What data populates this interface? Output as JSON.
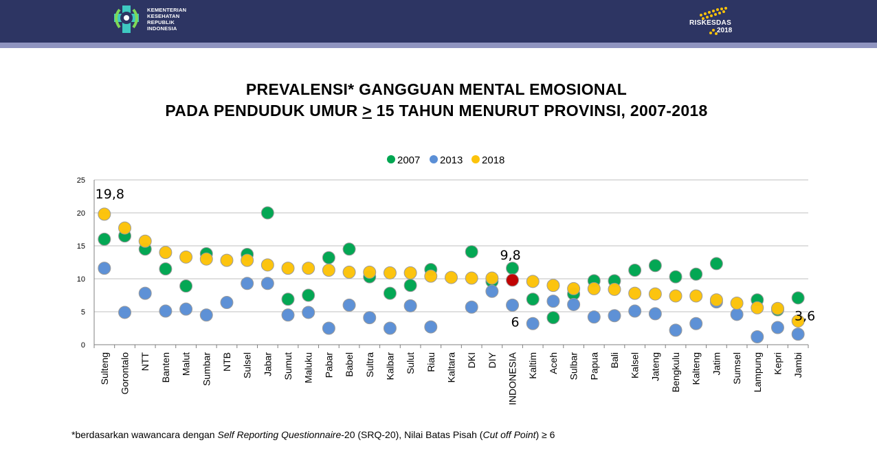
{
  "header": {
    "ministry_lines": [
      "KEMENTERIAN",
      "KESEHATAN",
      "REPUBLIK",
      "INDONESIA"
    ],
    "riskesdas_name": "RISKESDAS",
    "riskesdas_year": "2018"
  },
  "title": {
    "line1": "PREVALENSI* GANGGUAN MENTAL EMOSIONAL",
    "line2_pre": "PADA PENDUDUK UMUR ",
    "line2_ge": ">",
    "line2_post": " 15 TAHUN MENURUT PROVINSI, 2007-2018"
  },
  "footnote": {
    "pre": "*berdasarkan wawancara dengan ",
    "italic1": "Self Reporting Questionnaire",
    "mid": "-20 (SRQ-20), Nilai Batas Pisah (",
    "italic2": "Cut off Point",
    "post": ")  ≥ 6"
  },
  "colors": {
    "s2007": "#00a651",
    "s2013": "#5b8fd6",
    "s2018": "#fcc30b",
    "indonesia_2018": "#c00000",
    "header_bg": "#2d3563"
  },
  "chart_data": {
    "type": "scatter",
    "ylim": [
      0,
      25
    ],
    "yticks": [
      0,
      5,
      10,
      15,
      20,
      25
    ],
    "grid": true,
    "legend_position": "top",
    "categories": [
      "Sulteng",
      "Gorontalo",
      "NTT",
      "Banten",
      "Malut",
      "Sumbar",
      "NTB",
      "Sulsel",
      "Jabar",
      "Sumut",
      "Maluku",
      "Pabar",
      "Babel",
      "Sultra",
      "Kalbar",
      "Sulut",
      "Riau",
      "Kaltara",
      "DKI",
      "DIY",
      "INDONESIA",
      "Kaltim",
      "Aceh",
      "Sulbar",
      "Papua",
      "Bali",
      "Kalsel",
      "Jateng",
      "Bengkulu",
      "Kalteng",
      "Jatim",
      "Sumsel",
      "Lampung",
      "Kepri",
      "Jambi"
    ],
    "series": [
      {
        "name": "2007",
        "values": [
          16.0,
          16.5,
          14.5,
          11.5,
          8.9,
          13.8,
          null,
          13.7,
          20.0,
          6.9,
          7.5,
          13.2,
          14.5,
          10.3,
          7.8,
          9.0,
          11.4,
          null,
          14.1,
          9.6,
          11.6,
          6.9,
          4.1,
          7.7,
          9.7,
          9.7,
          11.3,
          12.0,
          10.3,
          10.7,
          12.3,
          null,
          6.8,
          5.3,
          7.1
        ]
      },
      {
        "name": "2013",
        "values": [
          11.6,
          4.9,
          7.8,
          5.1,
          5.4,
          4.5,
          6.4,
          9.3,
          9.3,
          4.5,
          4.9,
          2.5,
          6.0,
          4.1,
          2.5,
          5.9,
          2.7,
          null,
          5.7,
          8.1,
          6.0,
          3.2,
          6.6,
          6.1,
          4.2,
          4.4,
          5.1,
          4.7,
          2.2,
          3.2,
          6.5,
          4.6,
          1.2,
          2.6,
          1.6
        ]
      },
      {
        "name": "2018",
        "values": [
          19.8,
          17.7,
          15.7,
          14.0,
          13.3,
          13.0,
          12.8,
          12.8,
          12.1,
          11.6,
          11.6,
          11.3,
          11.0,
          11.0,
          10.9,
          10.9,
          10.4,
          10.2,
          10.1,
          10.1,
          9.8,
          9.6,
          9.0,
          8.5,
          8.5,
          8.4,
          7.8,
          7.7,
          7.4,
          7.4,
          6.8,
          6.3,
          5.6,
          5.5,
          3.6
        ]
      }
    ],
    "annotations": [
      {
        "text": "19,8",
        "category": "Sulteng",
        "value": 19.8
      },
      {
        "text": "9,8",
        "category": "INDONESIA",
        "value": 9.8
      },
      {
        "text": "6",
        "category": "INDONESIA",
        "value": 6.0
      },
      {
        "text": "3,6",
        "category": "Jambi",
        "value": 3.6
      }
    ]
  }
}
